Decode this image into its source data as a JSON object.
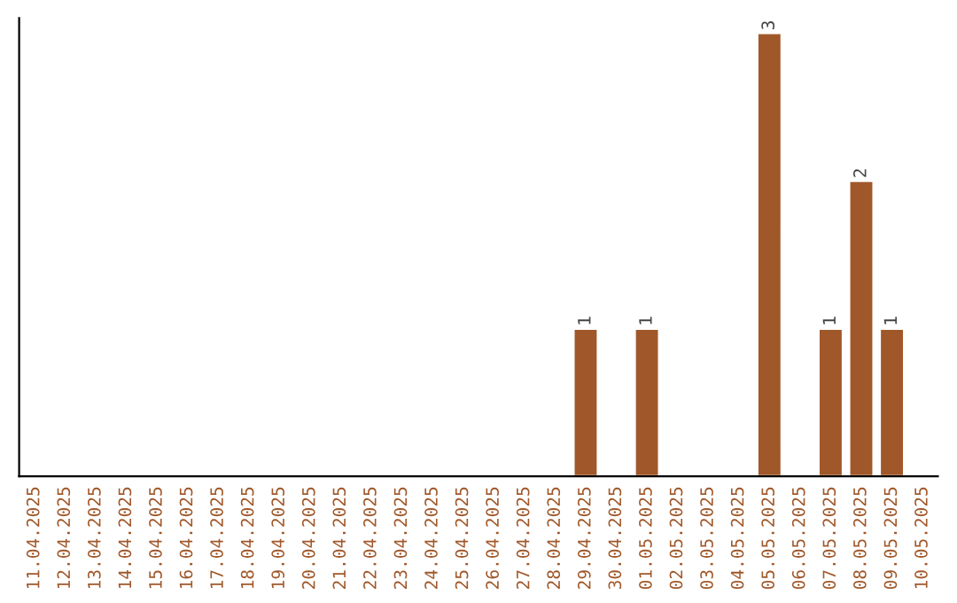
{
  "chart_data": {
    "type": "bar",
    "categories": [
      "11.04.2025",
      "12.04.2025",
      "13.04.2025",
      "14.04.2025",
      "15.04.2025",
      "16.04.2025",
      "17.04.2025",
      "18.04.2025",
      "19.04.2025",
      "20.04.2025",
      "21.04.2025",
      "22.04.2025",
      "23.04.2025",
      "24.04.2025",
      "25.04.2025",
      "26.04.2025",
      "27.04.2025",
      "28.04.2025",
      "29.04.2025",
      "30.04.2025",
      "01.05.2025",
      "02.05.2025",
      "03.05.2025",
      "04.05.2025",
      "05.05.2025",
      "06.05.2025",
      "07.05.2025",
      "08.05.2025",
      "09.05.2025",
      "10.05.2025"
    ],
    "values": [
      null,
      null,
      null,
      null,
      null,
      null,
      null,
      null,
      null,
      null,
      null,
      null,
      null,
      null,
      null,
      null,
      null,
      null,
      1,
      null,
      1,
      null,
      null,
      null,
      3,
      null,
      1,
      2,
      1,
      null
    ],
    "value_labels": [
      null,
      null,
      null,
      null,
      null,
      null,
      null,
      null,
      null,
      null,
      null,
      null,
      null,
      null,
      null,
      null,
      null,
      null,
      "1",
      null,
      "1",
      null,
      null,
      null,
      "3",
      null,
      "1",
      "2",
      "1",
      null
    ],
    "color": "#a0582a",
    "ylim": [
      0,
      3.1
    ],
    "tick_labels": "x",
    "grid": false,
    "legend": false
  }
}
